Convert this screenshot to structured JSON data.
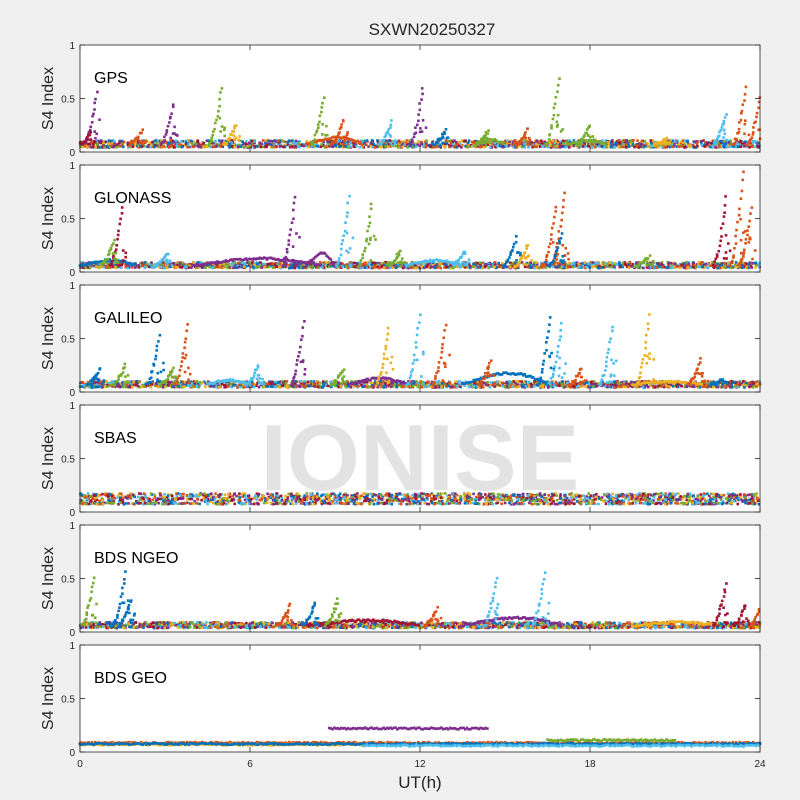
{
  "figure": {
    "title": "SXWN20250327",
    "xlabel": "UT(h)",
    "watermark": "IONISE",
    "background": "#f0f0f0",
    "axes_background": "#ffffff",
    "series_colors": [
      "#0072bd",
      "#d95319",
      "#edb120",
      "#7e2f8e",
      "#77ac30",
      "#4dbeee",
      "#a2142f"
    ]
  },
  "chart_data": [
    {
      "type": "scatter",
      "panel": "GPS",
      "ylabel": "S4 Index",
      "xlim": [
        0,
        24
      ],
      "ylim": [
        0,
        1
      ],
      "xticks": [
        "0",
        "6",
        "12",
        "18",
        "24"
      ],
      "yticks": [
        "0",
        "0.5",
        "1"
      ],
      "baseline": 0.07,
      "noise": 0.025,
      "spikes": [
        [
          0.5,
          0.55,
          3
        ],
        [
          0.3,
          0.18,
          6
        ],
        [
          2.1,
          0.2,
          1
        ],
        [
          3.2,
          0.45,
          3
        ],
        [
          4.9,
          0.6,
          4
        ],
        [
          5.4,
          0.25,
          2
        ],
        [
          8.5,
          0.5,
          4
        ],
        [
          9.2,
          0.3,
          1
        ],
        [
          10.9,
          0.28,
          5
        ],
        [
          12.0,
          0.6,
          3
        ],
        [
          12.8,
          0.2,
          0
        ],
        [
          14.3,
          0.2,
          4
        ],
        [
          15.7,
          0.22,
          1
        ],
        [
          16.8,
          0.7,
          4
        ],
        [
          17.9,
          0.25,
          4
        ],
        [
          20.6,
          0.12,
          2
        ],
        [
          22.7,
          0.35,
          5
        ],
        [
          23.4,
          0.6,
          1
        ],
        [
          23.9,
          0.5,
          1
        ]
      ],
      "bumps": [
        [
          8.0,
          10.0,
          0.15,
          1
        ],
        [
          14.0,
          15.0,
          0.12,
          4
        ],
        [
          17.2,
          18.6,
          0.12,
          4
        ]
      ]
    },
    {
      "type": "scatter",
      "panel": "GLONASS",
      "ylabel": "S4 Index",
      "xlim": [
        0,
        24
      ],
      "ylim": [
        0,
        1
      ],
      "xticks": [
        "0",
        "6",
        "12",
        "18",
        "24"
      ],
      "yticks": [
        "0",
        "0.5",
        "1"
      ],
      "baseline": 0.06,
      "noise": 0.02,
      "spikes": [
        [
          1.4,
          0.6,
          6
        ],
        [
          1.1,
          0.3,
          4
        ],
        [
          3.0,
          0.18,
          5
        ],
        [
          7.5,
          0.7,
          3
        ],
        [
          9.4,
          0.7,
          5
        ],
        [
          10.2,
          0.65,
          4
        ],
        [
          11.2,
          0.2,
          4
        ],
        [
          13.5,
          0.2,
          5
        ],
        [
          15.3,
          0.32,
          0
        ],
        [
          15.7,
          0.25,
          2
        ],
        [
          16.7,
          0.62,
          1
        ],
        [
          17.0,
          0.75,
          1
        ],
        [
          16.9,
          0.35,
          0
        ],
        [
          22.7,
          0.7,
          6
        ],
        [
          23.3,
          0.95,
          1
        ],
        [
          23.6,
          0.6,
          1
        ],
        [
          20.0,
          0.15,
          4
        ]
      ],
      "bumps": [
        [
          4.0,
          8.5,
          0.14,
          3
        ],
        [
          8.0,
          9.0,
          0.2,
          3
        ],
        [
          11.5,
          13.5,
          0.12,
          5
        ],
        [
          0.0,
          2.0,
          0.12,
          0
        ]
      ]
    },
    {
      "type": "scatter",
      "panel": "GALILEO",
      "ylabel": "S4 Index",
      "xlim": [
        0,
        24
      ],
      "ylim": [
        0,
        1
      ],
      "xticks": [
        "0",
        "6",
        "12",
        "18",
        "24"
      ],
      "yticks": [
        "0",
        "0.5",
        "1"
      ],
      "baseline": 0.07,
      "noise": 0.02,
      "spikes": [
        [
          0.6,
          0.22,
          0
        ],
        [
          1.5,
          0.25,
          4
        ],
        [
          2.7,
          0.52,
          0
        ],
        [
          3.7,
          0.62,
          1
        ],
        [
          3.2,
          0.22,
          4
        ],
        [
          6.2,
          0.25,
          5
        ],
        [
          7.8,
          0.65,
          3
        ],
        [
          9.2,
          0.22,
          4
        ],
        [
          10.8,
          0.6,
          2
        ],
        [
          11.9,
          0.72,
          5
        ],
        [
          12.8,
          0.62,
          1
        ],
        [
          14.4,
          0.3,
          1
        ],
        [
          16.5,
          0.7,
          0
        ],
        [
          16.9,
          0.65,
          5
        ],
        [
          17.6,
          0.22,
          1
        ],
        [
          18.7,
          0.62,
          5
        ],
        [
          20.0,
          0.72,
          2
        ],
        [
          21.8,
          0.3,
          1
        ],
        [
          22.6,
          0.12,
          0
        ]
      ],
      "bumps": [
        [
          13.5,
          16.5,
          0.2,
          0
        ],
        [
          4.5,
          6.0,
          0.12,
          5
        ],
        [
          9.5,
          11.5,
          0.14,
          3
        ],
        [
          19.5,
          22.0,
          0.1,
          2
        ]
      ]
    },
    {
      "type": "scatter",
      "panel": "SBAS",
      "ylabel": "S4 Index",
      "xlim": [
        0,
        24
      ],
      "ylim": [
        0,
        1
      ],
      "xticks": [
        "0",
        "6",
        "12",
        "18",
        "24"
      ],
      "yticks": [
        "0",
        "0.5",
        "1"
      ],
      "baseline": 0.12,
      "noise": 0.035,
      "spikes": [],
      "bumps": []
    },
    {
      "type": "scatter",
      "panel": "BDS NGEO",
      "ylabel": "S4 Index",
      "xlim": [
        0,
        24
      ],
      "ylim": [
        0,
        1
      ],
      "xticks": [
        "0",
        "6",
        "12",
        "18",
        "24"
      ],
      "yticks": [
        "0",
        "0.5",
        "1"
      ],
      "baseline": 0.06,
      "noise": 0.02,
      "spikes": [
        [
          0.4,
          0.5,
          4
        ],
        [
          1.5,
          0.55,
          0
        ],
        [
          1.7,
          0.3,
          0
        ],
        [
          7.3,
          0.25,
          1
        ],
        [
          8.2,
          0.28,
          0
        ],
        [
          9.0,
          0.3,
          4
        ],
        [
          12.5,
          0.22,
          1
        ],
        [
          14.6,
          0.5,
          5
        ],
        [
          16.3,
          0.55,
          5
        ],
        [
          22.7,
          0.45,
          6
        ],
        [
          23.4,
          0.25,
          6
        ],
        [
          24.0,
          0.3,
          1
        ]
      ],
      "bumps": [
        [
          8.0,
          12.0,
          0.12,
          6
        ],
        [
          13.5,
          17.0,
          0.15,
          3
        ],
        [
          19.5,
          22.5,
          0.1,
          2
        ]
      ]
    },
    {
      "type": "scatter",
      "panel": "BDS GEO",
      "ylabel": "S4 Index",
      "xlim": [
        0,
        24
      ],
      "ylim": [
        0,
        1
      ],
      "xticks": [
        "0",
        "6",
        "12",
        "18",
        "24"
      ],
      "yticks": [
        "0",
        "0.5",
        "1"
      ],
      "baseline": 0.08,
      "noise": 0.008,
      "spikes": [],
      "bumps": [],
      "flat_tracks": [
        [
          0,
          24,
          0.085,
          1
        ],
        [
          0,
          24,
          0.07,
          2
        ],
        [
          0,
          24,
          0.075,
          0
        ],
        [
          8.8,
          14.4,
          0.22,
          3
        ],
        [
          16.5,
          21.0,
          0.11,
          4
        ],
        [
          10.0,
          24.0,
          0.06,
          5
        ]
      ]
    }
  ]
}
